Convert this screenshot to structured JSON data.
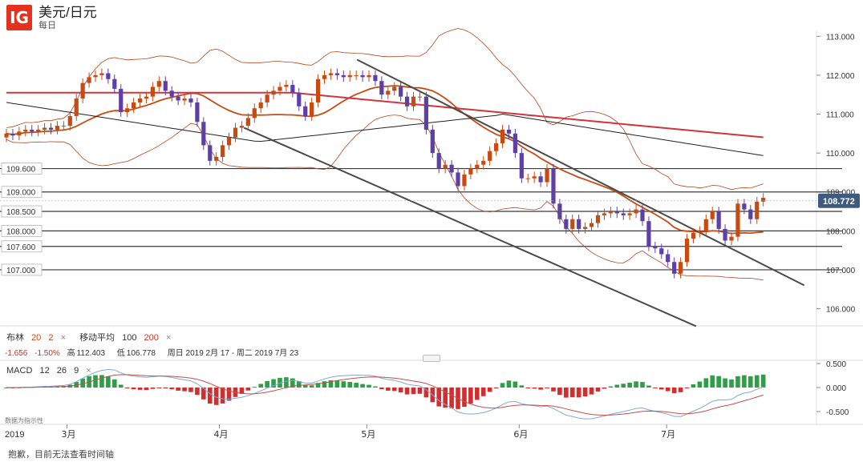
{
  "header": {
    "logo": "IG",
    "title": "美元/日元",
    "subtitle": "每日"
  },
  "indicators": {
    "bollinger": {
      "name": "布林",
      "period": "20",
      "dev": "2",
      "close": "×"
    },
    "ma": {
      "name": "移动平均",
      "fast": "100",
      "slow": "200",
      "close": "×"
    }
  },
  "ohlc": {
    "change": "-1.656",
    "change_pct": "-1.50%",
    "high_label": "高",
    "high": "112.403",
    "low_label": "低",
    "low": "106.778",
    "period": "周日 2019 2月 17 - 周二 2019 7月 23"
  },
  "macd_label": {
    "name": "MACD",
    "p1": "12",
    "p2": "26",
    "p3": "9",
    "close": "×"
  },
  "source_note": "数据为指示性",
  "year": "2019",
  "footer": "抱歉，目前无法查看时间轴",
  "colors": {
    "up": "#c94a10",
    "down": "#5d3fa6",
    "ma200": "#d0353d",
    "ma100": "#222222",
    "bb_mid": "#c94a10",
    "bb_band": "#b5451b",
    "hist_pos": "#2e9e47",
    "hist_neg": "#d42d2d",
    "macd_line": "#7fa9d6",
    "signal_line": "#c0504d",
    "current_bg": "#3d5a80"
  },
  "chart_data": {
    "type": "candlestick",
    "price_axis": {
      "range": [
        105.6,
        113.15
      ],
      "ticks": [
        "113.000",
        "112.000",
        "111.000",
        "110.000",
        "109.000",
        "108.000",
        "107.000",
        "106.000"
      ]
    },
    "current_price": "108.772",
    "x_axis": {
      "dates": [
        "2019-02-17",
        "2019-07-23"
      ],
      "month_labels": [
        {
          "label": "3月",
          "date": "2019-03-01"
        },
        {
          "label": "4月",
          "date": "2019-04-01"
        },
        {
          "label": "5月",
          "date": "2019-05-01"
        },
        {
          "label": "6月",
          "date": "2019-06-01"
        },
        {
          "label": "7月",
          "date": "2019-07-01"
        }
      ]
    },
    "horizontal_levels": [
      {
        "value": 109.6,
        "label": "109.600"
      },
      {
        "value": 109.0,
        "label": "109.000"
      },
      {
        "value": 108.5,
        "label": "108.500"
      },
      {
        "value": 108.0,
        "label": "108.000"
      },
      {
        "value": 107.6,
        "label": "107.600"
      },
      {
        "value": 107.0,
        "label": "107.000"
      }
    ],
    "trend_lines": [
      {
        "from": [
          "2019-04-29",
          112.4
        ],
        "to": [
          "2019-07-29",
          106.6
        ]
      },
      {
        "from": [
          "2019-04-06",
          110.65
        ],
        "to": [
          "2019-07-07",
          105.55
        ]
      }
    ],
    "closes": [
      110.5,
      110.45,
      110.55,
      110.6,
      110.55,
      110.6,
      110.65,
      110.6,
      110.7,
      110.7,
      110.95,
      111.4,
      111.8,
      111.95,
      112.0,
      112.05,
      111.9,
      111.65,
      111.05,
      111.15,
      111.3,
      111.4,
      111.45,
      111.7,
      111.85,
      111.6,
      111.45,
      111.35,
      111.4,
      111.3,
      110.8,
      110.2,
      109.8,
      109.9,
      110.2,
      110.4,
      110.65,
      110.7,
      110.9,
      111.15,
      111.3,
      111.5,
      111.6,
      111.7,
      111.75,
      111.55,
      111.2,
      110.95,
      111.3,
      111.9,
      112.0,
      112.05,
      112.0,
      111.95,
      112.0,
      112.0,
      111.95,
      112.0,
      111.85,
      111.5,
      111.6,
      111.7,
      111.45,
      111.2,
      111.45,
      111.45,
      110.6,
      110.0,
      109.6,
      109.7,
      109.5,
      109.15,
      109.45,
      109.6,
      109.7,
      109.8,
      110.05,
      110.25,
      110.6,
      110.5,
      110.0,
      109.35,
      109.35,
      109.4,
      109.25,
      109.6,
      108.7,
      108.3,
      108.05,
      108.3,
      108.05,
      108.1,
      108.2,
      108.4,
      108.45,
      108.5,
      108.45,
      108.4,
      108.45,
      108.55,
      108.25,
      107.6,
      107.55,
      107.4,
      107.2,
      106.9,
      107.2,
      107.8,
      107.95,
      108.0,
      108.3,
      108.5,
      108.05,
      107.75,
      107.85,
      108.7,
      108.55,
      108.3,
      108.75,
      108.85
    ]
  }
}
